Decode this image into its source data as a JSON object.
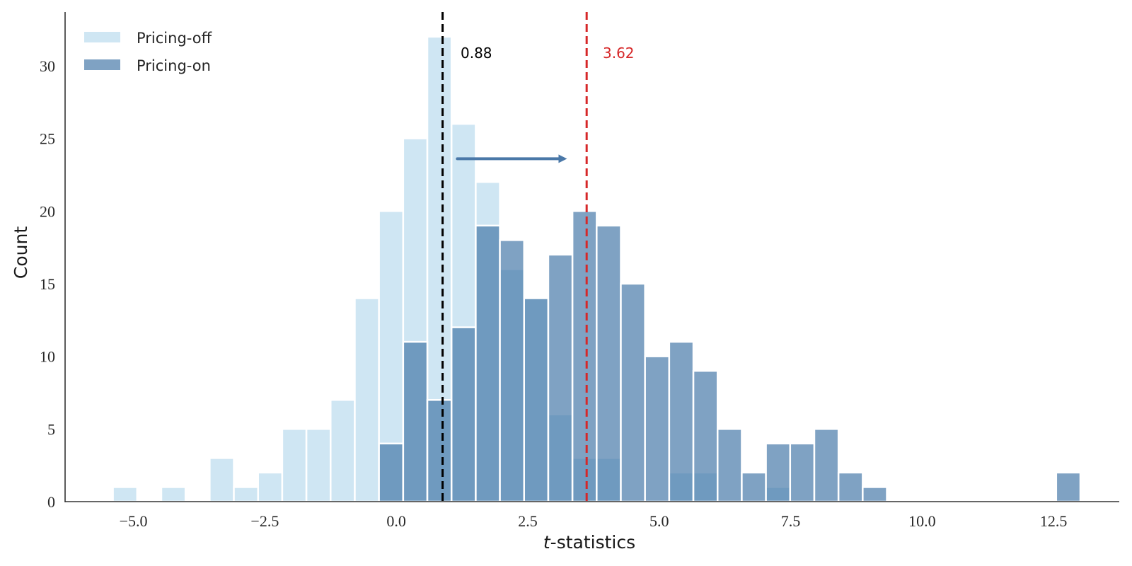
{
  "chart_data": {
    "type": "bar",
    "subtype": "overlapping-histogram",
    "title": "",
    "xlabel_italic": "t",
    "xlabel_rest": "-statistics",
    "ylabel": "Count",
    "xlim": [
      -6.3,
      13.75
    ],
    "ylim": [
      0,
      33.7
    ],
    "xticks": [
      -5.0,
      -2.5,
      0.0,
      2.5,
      5.0,
      7.5,
      10.0,
      12.5
    ],
    "xtick_labels": [
      "−5.0",
      "−2.5",
      "0.0",
      "2.5",
      "5.0",
      "7.5",
      "10.0",
      "12.5"
    ],
    "yticks": [
      0,
      5,
      10,
      15,
      20,
      25,
      30
    ],
    "ytick_labels": [
      "0",
      "5",
      "10",
      "15",
      "20",
      "25",
      "30"
    ],
    "grid": false,
    "legend_position": "top-left",
    "bin_start": -5.39,
    "bin_width": 0.46,
    "series": [
      {
        "name": "Pricing-off",
        "color": "#cfe6f3",
        "counts": [
          1,
          0,
          1,
          0,
          3,
          1,
          2,
          5,
          5,
          7,
          14,
          20,
          25,
          32,
          26,
          22,
          16,
          14,
          6,
          3,
          3,
          0,
          0,
          2,
          2,
          0,
          0,
          1,
          0,
          0,
          0,
          0,
          0,
          0,
          0,
          0,
          0,
          0,
          0,
          0
        ]
      },
      {
        "name": "Pricing-on",
        "color": "#3f74a5",
        "opacity": 0.667,
        "counts": [
          0,
          0,
          0,
          0,
          0,
          0,
          0,
          0,
          0,
          0,
          0,
          4,
          11,
          7,
          12,
          19,
          18,
          14,
          17,
          20,
          19,
          15,
          10,
          11,
          9,
          5,
          2,
          4,
          4,
          5,
          2,
          1,
          0,
          0,
          0,
          0,
          0,
          0,
          0,
          2
        ]
      }
    ],
    "reference_lines": [
      {
        "x": 0.88,
        "label": "0.88",
        "color": "#000000",
        "style": "dashed"
      },
      {
        "x": 3.62,
        "label": "3.62",
        "color": "#d62728",
        "style": "dashed"
      }
    ],
    "arrow": {
      "from_x": 1.16,
      "to_x": 3.22,
      "y": 23.6,
      "color": "#4a78a8"
    }
  }
}
